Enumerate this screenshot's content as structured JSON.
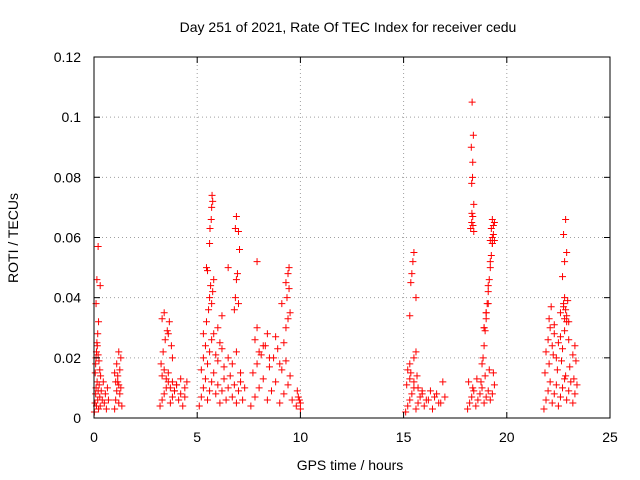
{
  "chart_data": {
    "type": "scatter",
    "title": "Day 251 of 2021, Rate Of TEC Index for receiver cedu",
    "xlabel": "GPS time / hours",
    "ylabel": "ROTI / TECUs",
    "xlim": [
      0,
      25
    ],
    "ylim": [
      0,
      0.12
    ],
    "xticks": [
      "0",
      "5",
      "10",
      "15",
      "20",
      "25"
    ],
    "yticks": [
      "0",
      "0.02",
      "0.04",
      "0.06",
      "0.08",
      "0.1",
      "0.12"
    ],
    "grid": true,
    "marker": "plus",
    "color": "#ff0000",
    "series": [
      {
        "name": "",
        "x": [
          0.02,
          0.05,
          0.08,
          0.1,
          0.12,
          0.15,
          0.18,
          0.2,
          0.22,
          0.25,
          0.28,
          0.3,
          0.35,
          0.4,
          0.45,
          0.5,
          0.55,
          0.6,
          0.65,
          0.7,
          0.06,
          0.1,
          0.14,
          0.18,
          0.22,
          0.08,
          0.12,
          0.16,
          0.2,
          0.24,
          0.28,
          0.32,
          0.1,
          0.14,
          0.2,
          0.3,
          1.0,
          1.05,
          1.1,
          1.15,
          1.2,
          1.25,
          1.3,
          1.35,
          1.0,
          1.1,
          1.2,
          1.3,
          1.05,
          1.15,
          1.25,
          1.2,
          3.2,
          3.3,
          3.4,
          3.5,
          3.6,
          3.7,
          3.8,
          3.9,
          4.0,
          4.1,
          4.2,
          4.3,
          4.4,
          4.5,
          3.3,
          3.4,
          3.5,
          3.6,
          3.7,
          3.8,
          3.9,
          4.0,
          4.2,
          4.4,
          3.25,
          3.35,
          3.45,
          3.55,
          3.65,
          3.75,
          3.3,
          3.4,
          3.6,
          3.8,
          5.1,
          5.2,
          5.3,
          5.4,
          5.5,
          5.6,
          5.7,
          5.8,
          5.9,
          6.0,
          6.1,
          6.2,
          6.3,
          6.4,
          6.5,
          6.6,
          6.7,
          6.8,
          6.9,
          7.0,
          7.1,
          7.2,
          7.3,
          5.2,
          5.3,
          5.4,
          5.5,
          5.6,
          5.7,
          5.8,
          5.9,
          6.0,
          6.1,
          6.2,
          6.3,
          6.5,
          6.7,
          6.9,
          7.1,
          5.3,
          5.45,
          5.55,
          5.6,
          5.65,
          5.7,
          5.75,
          5.8,
          6.0,
          6.2,
          6.5,
          6.8,
          6.85,
          6.9,
          6.95,
          7.0,
          6.85,
          6.9,
          7.0,
          7.05,
          5.45,
          5.5,
          5.6,
          5.62,
          5.68,
          5.7,
          5.72,
          5.75,
          7.6,
          7.8,
          8.0,
          8.2,
          8.4,
          8.6,
          8.8,
          9.0,
          9.2,
          9.4,
          9.6,
          7.7,
          7.9,
          8.1,
          8.3,
          8.5,
          8.7,
          8.9,
          9.1,
          9.3,
          9.5,
          7.8,
          8.0,
          8.2,
          8.5,
          8.8,
          9.0,
          9.2,
          9.3,
          9.4,
          9.5,
          7.9,
          8.4,
          9.1,
          9.35,
          9.45,
          7.9,
          9.3,
          9.4,
          9.45,
          9.8,
          9.9,
          10.0,
          9.85,
          9.95,
          10.0,
          15.1,
          15.2,
          15.3,
          15.4,
          15.5,
          15.6,
          15.7,
          15.8,
          15.9,
          16.0,
          16.2,
          16.4,
          16.6,
          16.8,
          17.0,
          15.15,
          15.3,
          15.5,
          15.7,
          15.9,
          16.1,
          16.3,
          16.5,
          16.7,
          16.9,
          15.3,
          15.35,
          15.4,
          15.45,
          15.5,
          15.6,
          15.2,
          15.3,
          15.35,
          15.5,
          15.6,
          15.65,
          18.1,
          18.2,
          18.3,
          18.4,
          18.5,
          18.6,
          18.7,
          18.8,
          18.9,
          19.0,
          19.1,
          19.2,
          19.3,
          19.4,
          18.15,
          18.35,
          18.55,
          18.75,
          18.95,
          19.15,
          19.35,
          18.8,
          18.85,
          18.9,
          18.95,
          19.0,
          19.05,
          19.1,
          19.15,
          19.2,
          19.25,
          19.3,
          19.35,
          19.4,
          18.9,
          19.0,
          19.1,
          19.2,
          19.3,
          18.25,
          18.3,
          18.35,
          18.4,
          18.3,
          18.35,
          18.28,
          18.38,
          18.32,
          18.34,
          18.31,
          18.36,
          18.4,
          19.2,
          19.25,
          19.3,
          19.35,
          19.4,
          19.3,
          18.9,
          19.0,
          19.1,
          21.8,
          21.9,
          22.0,
          22.1,
          22.2,
          22.3,
          22.4,
          22.5,
          22.6,
          22.7,
          22.8,
          22.9,
          23.0,
          23.1,
          23.2,
          23.3,
          23.4,
          21.85,
          22.05,
          22.25,
          22.45,
          22.65,
          22.85,
          23.05,
          23.25,
          21.9,
          22.0,
          22.1,
          22.2,
          22.3,
          22.4,
          22.5,
          22.6,
          22.7,
          22.8,
          22.9,
          23.0,
          23.2,
          23.3,
          23.35,
          22.05,
          22.15,
          22.3,
          22.6,
          22.75,
          22.8,
          22.85,
          22.9,
          22.95,
          23.0,
          22.7,
          22.8,
          22.9,
          22.75,
          22.85,
          22.8,
          22.75
        ],
        "y": [
          0.002,
          0.005,
          0.008,
          0.01,
          0.004,
          0.012,
          0.006,
          0.009,
          0.003,
          0.011,
          0.007,
          0.004,
          0.009,
          0.006,
          0.012,
          0.005,
          0.008,
          0.003,
          0.01,
          0.006,
          0.015,
          0.02,
          0.025,
          0.028,
          0.032,
          0.018,
          0.022,
          0.024,
          0.021,
          0.019,
          0.016,
          0.014,
          0.038,
          0.046,
          0.057,
          0.044,
          0.003,
          0.006,
          0.009,
          0.012,
          0.005,
          0.008,
          0.01,
          0.004,
          0.015,
          0.018,
          0.022,
          0.02,
          0.012,
          0.014,
          0.016,
          0.011,
          0.004,
          0.006,
          0.008,
          0.01,
          0.012,
          0.005,
          0.007,
          0.009,
          0.011,
          0.006,
          0.008,
          0.004,
          0.01,
          0.012,
          0.014,
          0.016,
          0.013,
          0.015,
          0.01,
          0.012,
          0.009,
          0.011,
          0.013,
          0.007,
          0.018,
          0.022,
          0.026,
          0.029,
          0.032,
          0.024,
          0.033,
          0.035,
          0.028,
          0.02,
          0.004,
          0.007,
          0.01,
          0.013,
          0.006,
          0.009,
          0.012,
          0.015,
          0.008,
          0.011,
          0.005,
          0.009,
          0.013,
          0.006,
          0.01,
          0.014,
          0.007,
          0.011,
          0.005,
          0.009,
          0.012,
          0.006,
          0.01,
          0.016,
          0.02,
          0.024,
          0.018,
          0.022,
          0.026,
          0.028,
          0.021,
          0.019,
          0.025,
          0.023,
          0.017,
          0.02,
          0.018,
          0.022,
          0.015,
          0.028,
          0.032,
          0.036,
          0.04,
          0.044,
          0.038,
          0.042,
          0.046,
          0.03,
          0.034,
          0.05,
          0.036,
          0.04,
          0.046,
          0.048,
          0.038,
          0.063,
          0.067,
          0.062,
          0.056,
          0.05,
          0.049,
          0.058,
          0.063,
          0.066,
          0.07,
          0.074,
          0.072,
          0.004,
          0.007,
          0.01,
          0.013,
          0.006,
          0.009,
          0.012,
          0.005,
          0.008,
          0.011,
          0.006,
          0.015,
          0.018,
          0.021,
          0.024,
          0.017,
          0.02,
          0.023,
          0.016,
          0.019,
          0.014,
          0.026,
          0.022,
          0.024,
          0.02,
          0.027,
          0.018,
          0.025,
          0.03,
          0.033,
          0.035,
          0.03,
          0.028,
          0.038,
          0.04,
          0.043,
          0.052,
          0.045,
          0.048,
          0.05,
          0.004,
          0.007,
          0.005,
          0.009,
          0.006,
          0.003,
          0.002,
          0.004,
          0.006,
          0.008,
          0.01,
          0.003,
          0.005,
          0.007,
          0.009,
          0.004,
          0.006,
          0.003,
          0.008,
          0.005,
          0.007,
          0.011,
          0.013,
          0.012,
          0.01,
          0.008,
          0.006,
          0.009,
          0.007,
          0.005,
          0.012,
          0.034,
          0.045,
          0.048,
          0.052,
          0.055,
          0.04,
          0.016,
          0.018,
          0.015,
          0.02,
          0.022,
          0.014,
          0.003,
          0.005,
          0.007,
          0.009,
          0.004,
          0.006,
          0.008,
          0.01,
          0.005,
          0.007,
          0.009,
          0.006,
          0.008,
          0.011,
          0.012,
          0.01,
          0.013,
          0.012,
          0.014,
          0.016,
          0.015,
          0.018,
          0.02,
          0.024,
          0.029,
          0.033,
          0.038,
          0.042,
          0.046,
          0.05,
          0.054,
          0.058,
          0.061,
          0.065,
          0.03,
          0.035,
          0.044,
          0.052,
          0.06,
          0.063,
          0.065,
          0.067,
          0.071,
          0.078,
          0.085,
          0.09,
          0.094,
          0.105,
          0.08,
          0.068,
          0.064,
          0.062,
          0.059,
          0.063,
          0.066,
          0.064,
          0.059,
          0.058,
          0.03,
          0.035,
          0.038,
          0.003,
          0.006,
          0.009,
          0.012,
          0.005,
          0.008,
          0.011,
          0.004,
          0.007,
          0.01,
          0.013,
          0.006,
          0.009,
          0.012,
          0.005,
          0.008,
          0.011,
          0.015,
          0.018,
          0.021,
          0.016,
          0.019,
          0.014,
          0.017,
          0.013,
          0.022,
          0.026,
          0.03,
          0.024,
          0.028,
          0.02,
          0.025,
          0.027,
          0.023,
          0.029,
          0.032,
          0.026,
          0.021,
          0.024,
          0.019,
          0.033,
          0.037,
          0.031,
          0.035,
          0.038,
          0.04,
          0.036,
          0.034,
          0.039,
          0.032,
          0.047,
          0.052,
          0.055,
          0.061,
          0.066,
          0.033,
          0.037
        ]
      }
    ]
  }
}
